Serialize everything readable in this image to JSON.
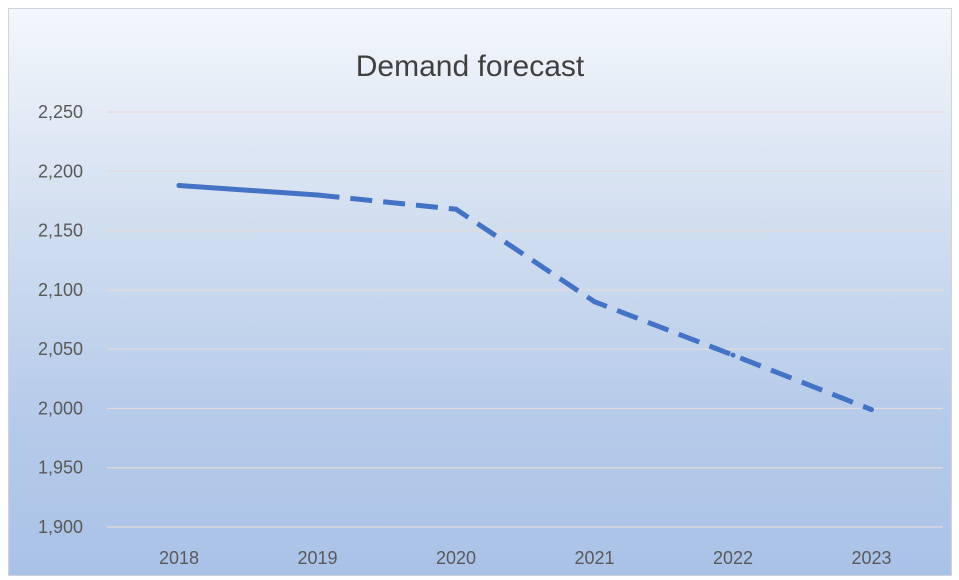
{
  "chart_data": {
    "type": "line",
    "title": "Demand forecast",
    "xlabel": "",
    "ylabel": "",
    "categories": [
      "2018",
      "2019",
      "2020",
      "2021",
      "2022",
      "2023"
    ],
    "series": [
      {
        "values": [
          2188,
          2180,
          2168,
          2090,
          2045,
          1999
        ],
        "color": "#4472c4",
        "line_style": "solid for 2018-2019, dashed for 2019-2023"
      }
    ],
    "ylim": [
      1900,
      2250
    ],
    "y_ticks": [
      1900,
      1950,
      2000,
      2050,
      2100,
      2150,
      2200,
      2250
    ],
    "y_tick_labels": [
      "1,900",
      "1,950",
      "2,000",
      "2,050",
      "2,100",
      "2,150",
      "2,200",
      "2,250"
    ],
    "grid": true,
    "legend": "none"
  }
}
